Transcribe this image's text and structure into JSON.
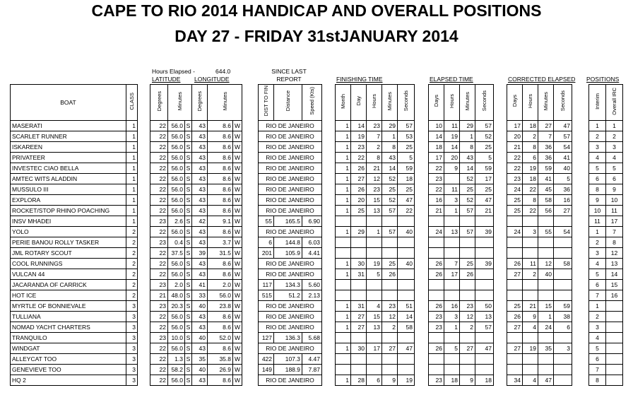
{
  "title_line1": "CAPE TO RIO 2014 HANDICAP AND OVERALL POSITIONS",
  "title_line2": "DAY 27 - FRIDAY 31stJANUARY 2014",
  "hours_elapsed_label": "Hours Elapsed -",
  "hours_elapsed_value": "644.0",
  "latitude_label": "LATITUDE",
  "longitude_label": "LONGITUDE",
  "since_last_report_label": "SINCE LAST REPORT",
  "finishing_time_label": "FINISHING TIME",
  "elapsed_time_label": "ELAPSED TIME",
  "corrected_elapsed_label": "CORRECTED ELAPSED",
  "positions_label": "POSITIONS",
  "headers": {
    "boat": "BOAT",
    "class": "CLASS",
    "lat_deg": "Degrees",
    "lat_min": "Minutes",
    "lon_deg": "Degrees",
    "lon_min": "Minutes",
    "dist": "DIST TO FIN",
    "distance": "Distance",
    "speed": "Speed (Kts)",
    "fin": [
      "Month",
      "Day",
      "Hours",
      "Minutes",
      "Seconds"
    ],
    "el": [
      "Days",
      "Hours",
      "Minutes",
      "Seconds"
    ],
    "co": [
      "Days",
      "Hours",
      "Minutes",
      "Seconds"
    ],
    "pos": [
      "Interim",
      "Overall IRC"
    ]
  },
  "rows": [
    {
      "boat": "MASERATI",
      "cls": "1",
      "latd": "22",
      "latm": "56.0",
      "ns": "S",
      "lond": "43",
      "lonm": "8.6",
      "ew": "W",
      "dist": "RIO DE JANEIRO",
      "distance": "",
      "speed": "",
      "fin": [
        "1",
        "14",
        "23",
        "29",
        "57"
      ],
      "el": [
        "10",
        "11",
        "29",
        "57"
      ],
      "co": [
        "17",
        "18",
        "27",
        "47"
      ],
      "pos": [
        "1",
        "1"
      ]
    },
    {
      "boat": "SCARLET RUNNER",
      "cls": "1",
      "latd": "22",
      "latm": "56.0",
      "ns": "S",
      "lond": "43",
      "lonm": "8.6",
      "ew": "W",
      "dist": "RIO DE JANEIRO",
      "distance": "",
      "speed": "",
      "fin": [
        "1",
        "19",
        "7",
        "1",
        "53"
      ],
      "el": [
        "14",
        "19",
        "1",
        "52"
      ],
      "co": [
        "20",
        "2",
        "7",
        "57"
      ],
      "pos": [
        "2",
        "2"
      ]
    },
    {
      "boat": "ISKAREEN",
      "cls": "1",
      "latd": "22",
      "latm": "56.0",
      "ns": "S",
      "lond": "43",
      "lonm": "8.6",
      "ew": "W",
      "dist": "RIO DE JANEIRO",
      "distance": "",
      "speed": "",
      "fin": [
        "1",
        "23",
        "2",
        "8",
        "25"
      ],
      "el": [
        "18",
        "14",
        "8",
        "25"
      ],
      "co": [
        "21",
        "8",
        "36",
        "54"
      ],
      "pos": [
        "3",
        "3"
      ]
    },
    {
      "boat": "PRIVATEER",
      "cls": "1",
      "latd": "22",
      "latm": "56.0",
      "ns": "S",
      "lond": "43",
      "lonm": "8.6",
      "ew": "W",
      "dist": "RIO DE JANEIRO",
      "distance": "",
      "speed": "",
      "fin": [
        "1",
        "22",
        "8",
        "43",
        "5"
      ],
      "el": [
        "17",
        "20",
        "43",
        "5"
      ],
      "co": [
        "22",
        "6",
        "36",
        "41"
      ],
      "pos": [
        "4",
        "4"
      ]
    },
    {
      "boat": "INVESTEC CIAO BELLA",
      "cls": "1",
      "latd": "22",
      "latm": "56.0",
      "ns": "S",
      "lond": "43",
      "lonm": "8.6",
      "ew": "W",
      "dist": "RIO DE JANEIRO",
      "distance": "",
      "speed": "",
      "fin": [
        "1",
        "26",
        "21",
        "14",
        "59"
      ],
      "el": [
        "22",
        "9",
        "14",
        "59"
      ],
      "co": [
        "22",
        "19",
        "59",
        "40"
      ],
      "pos": [
        "5",
        "5"
      ]
    },
    {
      "boat": "AMTEC WITS ALADDIN",
      "cls": "1",
      "latd": "22",
      "latm": "56.0",
      "ns": "S",
      "lond": "43",
      "lonm": "8.6",
      "ew": "W",
      "dist": "RIO DE JANEIRO",
      "distance": "",
      "speed": "",
      "fin": [
        "1",
        "27",
        "12",
        "52",
        "18"
      ],
      "el": [
        "23",
        "",
        "52",
        "17"
      ],
      "co": [
        "23",
        "18",
        "41",
        "5"
      ],
      "pos": [
        "6",
        "6"
      ]
    },
    {
      "boat": "MUSSULO III",
      "cls": "1",
      "latd": "22",
      "latm": "56.0",
      "ns": "S",
      "lond": "43",
      "lonm": "8.6",
      "ew": "W",
      "dist": "RIO DE JANEIRO",
      "distance": "",
      "speed": "",
      "fin": [
        "1",
        "26",
        "23",
        "25",
        "25"
      ],
      "el": [
        "22",
        "11",
        "25",
        "25"
      ],
      "co": [
        "24",
        "22",
        "45",
        "36"
      ],
      "pos": [
        "8",
        "9"
      ]
    },
    {
      "boat": "EXPLORA",
      "cls": "1",
      "latd": "22",
      "latm": "56.0",
      "ns": "S",
      "lond": "43",
      "lonm": "8.6",
      "ew": "W",
      "dist": "RIO DE JANEIRO",
      "distance": "",
      "speed": "",
      "fin": [
        "1",
        "20",
        "15",
        "52",
        "47"
      ],
      "el": [
        "16",
        "3",
        "52",
        "47"
      ],
      "co": [
        "25",
        "8",
        "58",
        "16"
      ],
      "pos": [
        "9",
        "10"
      ]
    },
    {
      "boat": "ROCKET/STOP RHINO POACHING",
      "cls": "1",
      "latd": "22",
      "latm": "56.0",
      "ns": "S",
      "lond": "43",
      "lonm": "8.6",
      "ew": "W",
      "dist": "RIO DE JANEIRO",
      "distance": "",
      "speed": "",
      "fin": [
        "1",
        "25",
        "13",
        "57",
        "22"
      ],
      "el": [
        "21",
        "1",
        "57",
        "21"
      ],
      "co": [
        "25",
        "22",
        "56",
        "27"
      ],
      "pos": [
        "10",
        "11"
      ]
    },
    {
      "boat": "INSV MHADEI",
      "cls": "1",
      "latd": "23",
      "latm": "2.6",
      "ns": "S",
      "lond": "42",
      "lonm": "9.1",
      "ew": "W",
      "dist": "55",
      "distance": "165.5",
      "speed": "6.90",
      "fin": [
        "",
        "",
        "",
        "",
        ""
      ],
      "el": [
        "",
        "",
        "",
        ""
      ],
      "co": [
        "",
        "",
        "",
        ""
      ],
      "pos": [
        "11",
        "17"
      ]
    },
    {
      "boat": "YOLO",
      "cls": "2",
      "latd": "22",
      "latm": "56.0",
      "ns": "S",
      "lond": "43",
      "lonm": "8.6",
      "ew": "W",
      "dist": "RIO DE JANEIRO",
      "distance": "",
      "speed": "",
      "fin": [
        "1",
        "29",
        "1",
        "57",
        "40"
      ],
      "el": [
        "24",
        "13",
        "57",
        "39"
      ],
      "co": [
        "24",
        "3",
        "55",
        "54"
      ],
      "pos": [
        "1",
        "7"
      ]
    },
    {
      "boat": "PERIE BANOU ROLLY TASKER",
      "cls": "2",
      "latd": "23",
      "latm": "0.4",
      "ns": "S",
      "lond": "43",
      "lonm": "3.7",
      "ew": "W",
      "dist": "6",
      "distance": "144.8",
      "speed": "6.03",
      "fin": [
        "",
        "",
        "",
        "",
        ""
      ],
      "el": [
        "",
        "",
        "",
        ""
      ],
      "co": [
        "",
        "",
        "",
        ""
      ],
      "pos": [
        "2",
        "8"
      ]
    },
    {
      "boat": "JML ROTARY SCOUT",
      "cls": "2",
      "latd": "22",
      "latm": "37.5",
      "ns": "S",
      "lond": "39",
      "lonm": "31.5",
      "ew": "W",
      "dist": "201",
      "distance": "105.9",
      "speed": "4.41",
      "fin": [
        "",
        "",
        "",
        "",
        ""
      ],
      "el": [
        "",
        "",
        "",
        ""
      ],
      "co": [
        "",
        "",
        "",
        ""
      ],
      "pos": [
        "3",
        "12"
      ]
    },
    {
      "boat": "COOL RUNNINGS",
      "cls": "2",
      "latd": "22",
      "latm": "56.0",
      "ns": "S",
      "lond": "43",
      "lonm": "8.6",
      "ew": "W",
      "dist": "RIO DE JANEIRO",
      "distance": "",
      "speed": "",
      "fin": [
        "1",
        "30",
        "19",
        "25",
        "40"
      ],
      "el": [
        "26",
        "7",
        "25",
        "39"
      ],
      "co": [
        "26",
        "11",
        "12",
        "58"
      ],
      "pos": [
        "4",
        "13"
      ]
    },
    {
      "boat": "VULCAN 44",
      "cls": "2",
      "latd": "22",
      "latm": "56.0",
      "ns": "S",
      "lond": "43",
      "lonm": "8.6",
      "ew": "W",
      "dist": "RIO DE JANEIRO",
      "distance": "",
      "speed": "",
      "fin": [
        "1",
        "31",
        "5",
        "26",
        ""
      ],
      "el": [
        "26",
        "17",
        "26",
        ""
      ],
      "co": [
        "27",
        "2",
        "40",
        ""
      ],
      "pos": [
        "5",
        "14"
      ]
    },
    {
      "boat": "JACARANDA OF CARRICK",
      "cls": "2",
      "latd": "23",
      "latm": "2.0",
      "ns": "S",
      "lond": "41",
      "lonm": "2.0",
      "ew": "W",
      "dist": "117",
      "distance": "134.3",
      "speed": "5.60",
      "fin": [
        "",
        "",
        "",
        "",
        ""
      ],
      "el": [
        "",
        "",
        "",
        ""
      ],
      "co": [
        "",
        "",
        "",
        ""
      ],
      "pos": [
        "6",
        "15"
      ]
    },
    {
      "boat": "HOT ICE",
      "cls": "2",
      "latd": "21",
      "latm": "48.0",
      "ns": "S",
      "lond": "33",
      "lonm": "56.0",
      "ew": "W",
      "dist": "515",
      "distance": "51.2",
      "speed": "2.13",
      "fin": [
        "",
        "",
        "",
        "",
        ""
      ],
      "el": [
        "",
        "",
        "",
        ""
      ],
      "co": [
        "",
        "",
        "",
        ""
      ],
      "pos": [
        "7",
        "16"
      ]
    },
    {
      "boat": "MYRTLE OF BONNIEVALE",
      "cls": "3",
      "latd": "23",
      "latm": "20.3",
      "ns": "S",
      "lond": "40",
      "lonm": "23.8",
      "ew": "W",
      "dist": "RIO DE JANEIRO",
      "distance": "",
      "speed": "",
      "fin": [
        "1",
        "31",
        "4",
        "23",
        "51"
      ],
      "el": [
        "26",
        "16",
        "23",
        "50"
      ],
      "co": [
        "25",
        "21",
        "15",
        "59"
      ],
      "pos": [
        "1",
        ""
      ]
    },
    {
      "boat": "TULLIANA",
      "cls": "3",
      "latd": "22",
      "latm": "56.0",
      "ns": "S",
      "lond": "43",
      "lonm": "8.6",
      "ew": "W",
      "dist": "RIO DE JANEIRO",
      "distance": "",
      "speed": "",
      "fin": [
        "1",
        "27",
        "15",
        "12",
        "14"
      ],
      "el": [
        "23",
        "3",
        "12",
        "13"
      ],
      "co": [
        "26",
        "9",
        "1",
        "38"
      ],
      "pos": [
        "2",
        ""
      ]
    },
    {
      "boat": "NOMAD YACHT CHARTERS",
      "cls": "3",
      "latd": "22",
      "latm": "56.0",
      "ns": "S",
      "lond": "43",
      "lonm": "8.6",
      "ew": "W",
      "dist": "RIO DE JANEIRO",
      "distance": "",
      "speed": "",
      "fin": [
        "1",
        "27",
        "13",
        "2",
        "58"
      ],
      "el": [
        "23",
        "1",
        "2",
        "57"
      ],
      "co": [
        "27",
        "4",
        "24",
        "6"
      ],
      "pos": [
        "3",
        ""
      ]
    },
    {
      "boat": "TRANQUILO",
      "cls": "3",
      "latd": "23",
      "latm": "10.0",
      "ns": "S",
      "lond": "40",
      "lonm": "52.0",
      "ew": "W",
      "dist": "127",
      "distance": "136.3",
      "speed": "5.68",
      "fin": [
        "",
        "",
        "",
        "",
        ""
      ],
      "el": [
        "",
        "",
        "",
        ""
      ],
      "co": [
        "",
        "",
        "",
        ""
      ],
      "pos": [
        "4",
        ""
      ]
    },
    {
      "boat": "WINDGAT",
      "cls": "3",
      "latd": "22",
      "latm": "56.0",
      "ns": "S",
      "lond": "43",
      "lonm": "8.6",
      "ew": "W",
      "dist": "RIO DE JANEIRO",
      "distance": "",
      "speed": "",
      "fin": [
        "1",
        "30",
        "17",
        "27",
        "47"
      ],
      "el": [
        "26",
        "5",
        "27",
        "47"
      ],
      "co": [
        "27",
        "19",
        "35",
        "3"
      ],
      "pos": [
        "5",
        ""
      ]
    },
    {
      "boat": "ALLEYCAT TOO",
      "cls": "3",
      "latd": "22",
      "latm": "1.3",
      "ns": "S",
      "lond": "35",
      "lonm": "35.8",
      "ew": "W",
      "dist": "422",
      "distance": "107.3",
      "speed": "4.47",
      "fin": [
        "",
        "",
        "",
        "",
        ""
      ],
      "el": [
        "",
        "",
        "",
        ""
      ],
      "co": [
        "",
        "",
        "",
        ""
      ],
      "pos": [
        "6",
        ""
      ]
    },
    {
      "boat": "GENEVIEVE TOO",
      "cls": "3",
      "latd": "22",
      "latm": "58.2",
      "ns": "S",
      "lond": "40",
      "lonm": "26.9",
      "ew": "W",
      "dist": "149",
      "distance": "188.9",
      "speed": "7.87",
      "fin": [
        "",
        "",
        "",
        "",
        ""
      ],
      "el": [
        "",
        "",
        "",
        ""
      ],
      "co": [
        "",
        "",
        "",
        ""
      ],
      "pos": [
        "7",
        ""
      ]
    },
    {
      "boat": "HQ 2",
      "cls": "3",
      "latd": "22",
      "latm": "56.0",
      "ns": "S",
      "lond": "43",
      "lonm": "8.6",
      "ew": "W",
      "dist": "RIO DE JANEIRO",
      "distance": "",
      "speed": "",
      "fin": [
        "1",
        "28",
        "6",
        "9",
        "19"
      ],
      "el": [
        "23",
        "18",
        "9",
        "18"
      ],
      "co": [
        "34",
        "4",
        "47",
        ""
      ],
      "pos": [
        "8",
        ""
      ]
    }
  ]
}
